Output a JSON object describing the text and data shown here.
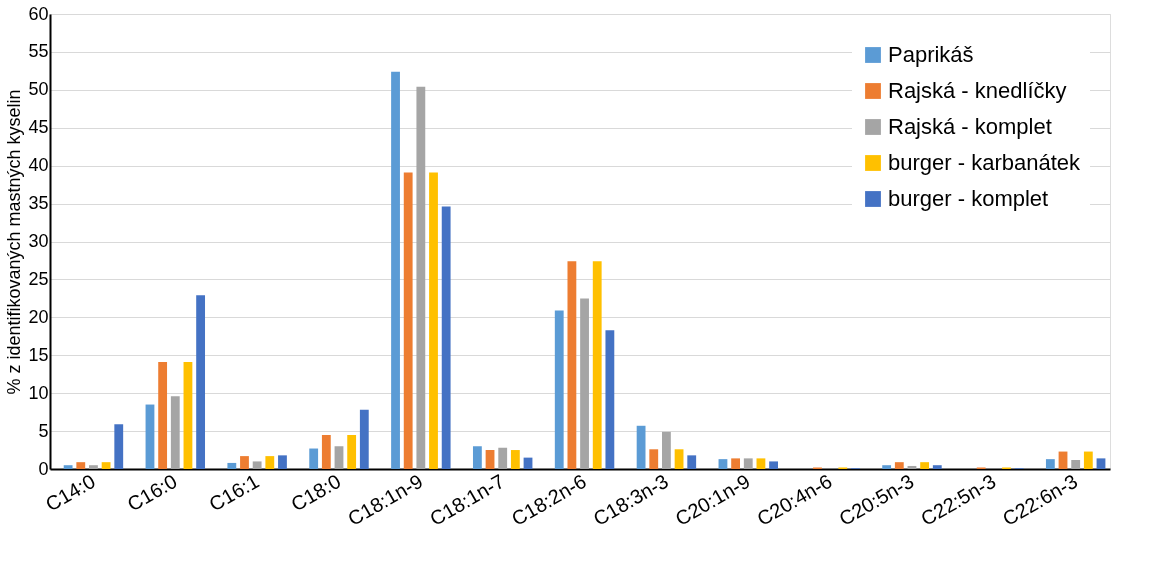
{
  "chart_data": {
    "type": "bar",
    "ylabel": "% z identifikovaných mastných kyselin",
    "categories": [
      "C14:0",
      "C16:0",
      "C16:1",
      "C18:0",
      "C18:1n-9",
      "C18:1n-7",
      "C18:2n-6",
      "C18:3n-3",
      "C20:1n-9",
      "C20:4n-6",
      "C20:5n-3",
      "C22:5n-3",
      "C22:6n-3"
    ],
    "series": [
      {
        "name": "Paprikáš",
        "color": "#5b9bd5",
        "values": [
          0.5,
          8.5,
          0.8,
          2.7,
          52.4,
          3.0,
          20.9,
          5.7,
          1.3,
          null,
          0.5,
          null,
          1.3
        ]
      },
      {
        "name": "Rajská - knedlíčky",
        "color": "#ed7d31",
        "values": [
          0.9,
          14.1,
          1.7,
          4.5,
          39.1,
          2.5,
          27.4,
          2.6,
          1.4,
          0.2,
          0.9,
          0.2,
          2.3
        ]
      },
      {
        "name": "Rajská - komplet",
        "color": "#a5a5a5",
        "values": [
          0.5,
          9.6,
          1.0,
          3.0,
          50.4,
          2.8,
          22.5,
          4.9,
          1.4,
          null,
          0.4,
          null,
          1.2
        ]
      },
      {
        "name": "burger - karbanátek",
        "color": "#ffc000",
        "values": [
          0.9,
          14.1,
          1.7,
          4.5,
          39.1,
          2.5,
          27.4,
          2.6,
          1.4,
          0.2,
          0.9,
          0.2,
          2.3
        ]
      },
      {
        "name": "burger - komplet",
        "color": "#4472c4",
        "values": [
          5.9,
          22.9,
          1.8,
          7.8,
          34.6,
          1.5,
          18.3,
          1.8,
          1.0,
          0.1,
          0.5,
          0.1,
          1.4
        ]
      }
    ],
    "ylim": [
      0,
      60
    ],
    "yticks": [
      0,
      5,
      10,
      15,
      20,
      25,
      30,
      35,
      40,
      45,
      50,
      55,
      60
    ],
    "grid": "y",
    "legend": "top right"
  }
}
